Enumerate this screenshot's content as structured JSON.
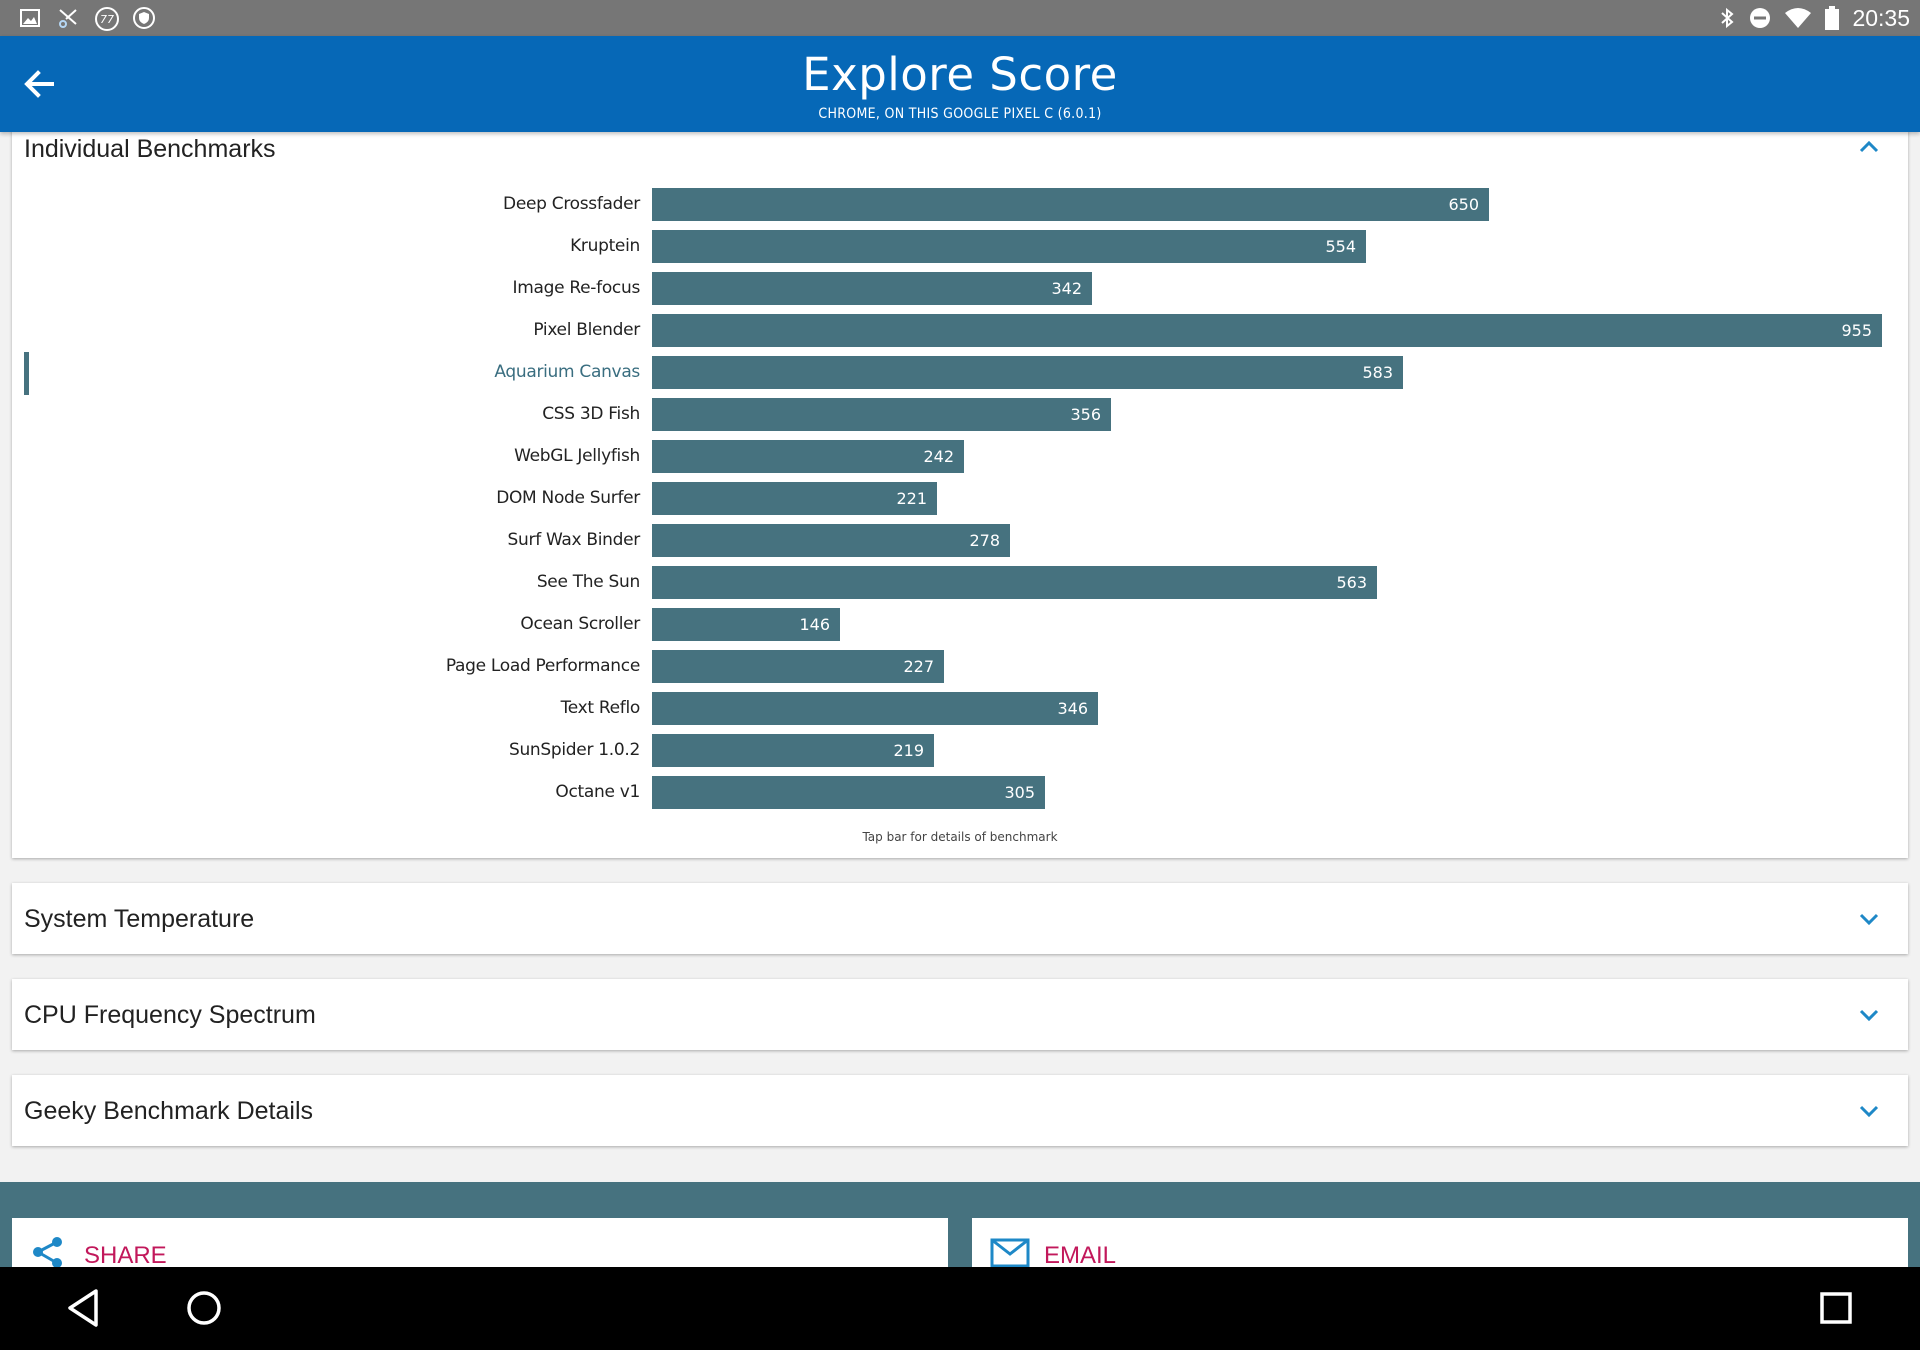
{
  "status_bar": {
    "time": "20:35",
    "left_icons": [
      "gallery-icon",
      "scissors-icon",
      "77-icon",
      "shield-icon"
    ],
    "right_icons": [
      "bluetooth-icon",
      "do-not-disturb-icon",
      "wifi-icon",
      "battery-icon"
    ]
  },
  "header": {
    "title": "Explore Score",
    "subtitle": "CHROME, ON THIS GOOGLE PIXEL C (6.0.1)",
    "back_icon": "arrow-back-icon"
  },
  "benchmarks_section": {
    "title": "Individual Benchmarks",
    "expanded": true,
    "note": "Tap bar for details of benchmark",
    "selected": "Aquarium Canvas"
  },
  "chart_data": {
    "type": "bar",
    "orientation": "horizontal",
    "categories": [
      "Deep Crossfader",
      "Kruptein",
      "Image Re-focus",
      "Pixel Blender",
      "Aquarium Canvas",
      "CSS 3D Fish",
      "WebGL Jellyfish",
      "DOM Node Surfer",
      "Surf Wax Binder",
      "See The Sun",
      "Ocean Scroller",
      "Page Load Performance",
      "Text Reflo",
      "SunSpider 1.0.2",
      "Octane v1"
    ],
    "values": [
      650,
      554,
      342,
      955,
      583,
      356,
      242,
      221,
      278,
      563,
      146,
      227,
      346,
      219,
      305
    ],
    "xlim": [
      0,
      955
    ],
    "grid": false,
    "bar_color": "#46727f"
  },
  "sections": [
    {
      "title": "System Temperature",
      "expanded": false
    },
    {
      "title": "CPU Frequency Spectrum",
      "expanded": false
    },
    {
      "title": "Geeky Benchmark Details",
      "expanded": false
    }
  ],
  "actions": {
    "share_label": "SHARE",
    "email_label": "EMAIL"
  },
  "colors": {
    "app_bar": "#0668b7",
    "bar": "#46727f",
    "accent_text": "#c2185b",
    "chevron": "#1e88c7",
    "status_bar": "#767676"
  }
}
